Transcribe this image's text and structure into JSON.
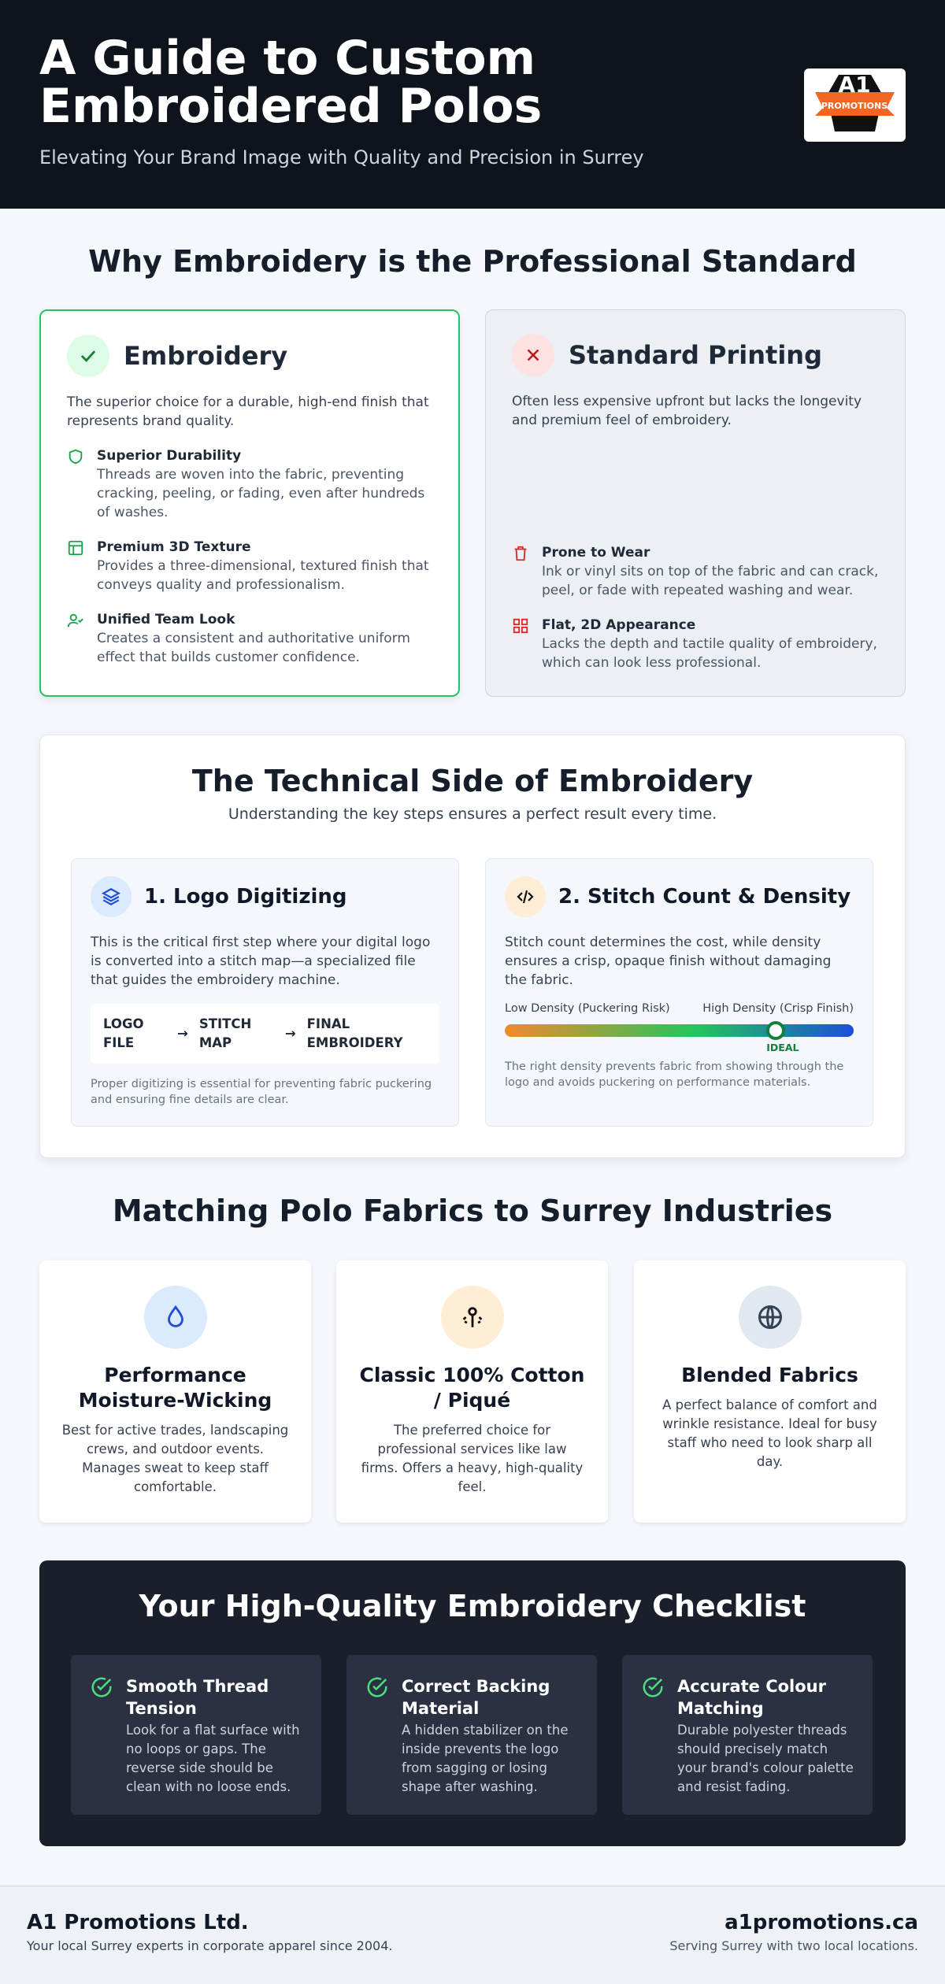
{
  "header": {
    "title": "A Guide to Custom Embroidered Polos",
    "subtitle": "Elevating Your Brand Image with Quality and Precision in Surrey",
    "logo": {
      "brand": "A1",
      "text": "PROMOTIONS"
    }
  },
  "comparison": {
    "title": "Why Embroidery is the Professional Standard",
    "embroidery": {
      "title": "Embroidery",
      "intro": "The superior choice for a durable, high-end finish that represents brand quality.",
      "points": [
        {
          "title": "Superior Durability",
          "text": "Threads are woven into the fabric, preventing cracking, peeling, or fading, even after hundreds of washes."
        },
        {
          "title": "Premium 3D Texture",
          "text": "Provides a three-dimensional, textured finish that conveys quality and professionalism."
        },
        {
          "title": "Unified Team Look",
          "text": "Creates a consistent and authoritative uniform effect that builds customer confidence."
        }
      ]
    },
    "printing": {
      "title": "Standard Printing",
      "intro": "Often less expensive upfront but lacks the longevity and premium feel of embroidery.",
      "points": [
        {
          "title": "Prone to Wear",
          "text": "Ink or vinyl sits on top of the fabric and can crack, peel, or fade with repeated washing and wear."
        },
        {
          "title": "Flat, 2D Appearance",
          "text": "Lacks the depth and tactile quality of embroidery, which can look less professional."
        }
      ]
    }
  },
  "technical": {
    "title": "The Technical Side of Embroidery",
    "subtitle": "Understanding the key steps ensures a perfect result every time.",
    "digitizing": {
      "title": "1. Logo Digitizing",
      "text": "This is the critical first step where your digital logo is converted into a stitch map—a specialized file that guides the embroidery machine.",
      "steps": [
        "LOGO FILE",
        "STITCH MAP",
        "FINAL EMBROIDERY"
      ],
      "note": "Proper digitizing is essential for preventing fabric puckering and ensuring fine details are clear."
    },
    "density": {
      "title": "2. Stitch Count & Density",
      "text": "Stitch count determines the cost, while density ensures a crisp, opaque finish without damaging the fabric.",
      "low": "Low Density (Puckering Risk)",
      "high": "High Density (Crisp Finish)",
      "ideal": "IDEAL",
      "note": "The right density prevents fabric from showing through the logo and avoids puckering on performance materials."
    }
  },
  "fabrics": {
    "title": "Matching Polo Fabrics to Surrey Industries",
    "cards": [
      {
        "title": "Performance Moisture-Wicking",
        "text": "Best for active trades, landscaping crews, and outdoor events. Manages sweat to keep staff comfortable."
      },
      {
        "title": "Classic 100% Cotton / Piqué",
        "text": "The preferred choice for professional services like law firms. Offers a heavy, high-quality feel."
      },
      {
        "title": "Blended Fabrics",
        "text": "A perfect balance of comfort and wrinkle resistance. Ideal for busy staff who need to look sharp all day."
      }
    ]
  },
  "checklist": {
    "title": "Your High-Quality Embroidery Checklist",
    "items": [
      {
        "title": "Smooth Thread Tension",
        "text": "Look for a flat surface with no loops or gaps. The reverse side should be clean with no loose ends."
      },
      {
        "title": "Correct Backing Material",
        "text": "A hidden stabilizer on the inside prevents the logo from sagging or losing shape after washing."
      },
      {
        "title": "Accurate Colour Matching",
        "text": "Durable polyester threads should precisely match your brand's colour palette and resist fading."
      }
    ]
  },
  "footer": {
    "company": "A1 Promotions Ltd.",
    "tagline": "Your local Surrey experts in corporate apparel since 2004.",
    "website": "a1promotions.ca",
    "note": "Serving Surrey with two local locations."
  }
}
